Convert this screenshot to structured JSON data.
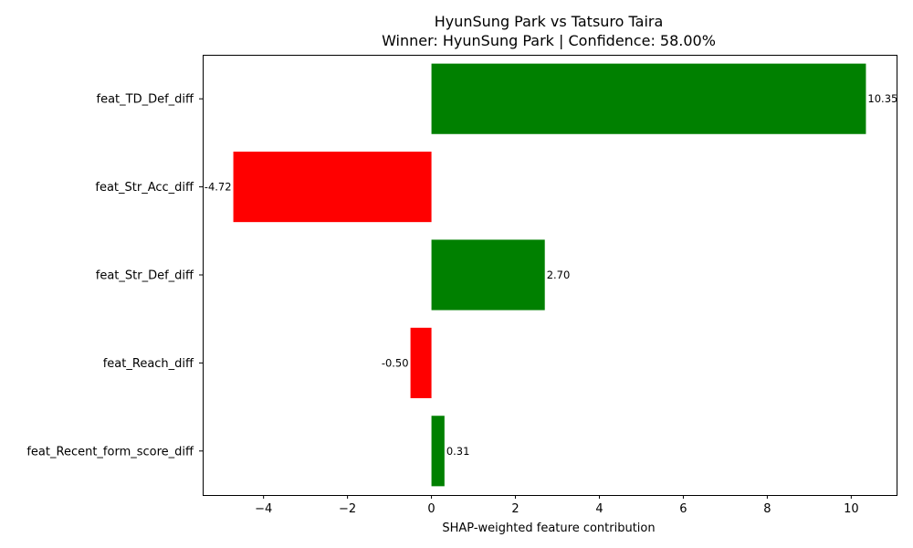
{
  "chart_data": {
    "type": "bar",
    "orientation": "horizontal",
    "title": "HyunSung Park vs Tatsuro Taira",
    "subtitle": "Winner: HyunSung Park | Confidence: 58.00%",
    "xlabel": "SHAP-weighted feature contribution",
    "ylabel": "",
    "categories": [
      "feat_TD_Def_diff",
      "feat_Str_Acc_diff",
      "feat_Str_Def_diff",
      "feat_Reach_diff",
      "feat_Recent_form_score_diff"
    ],
    "values": [
      10.35,
      -4.72,
      2.7,
      -0.5,
      0.31
    ],
    "value_labels": [
      "10.35",
      "-4.72",
      "2.70",
      "-0.50",
      "0.31"
    ],
    "xlim": [
      -5.45,
      11.08
    ],
    "xticks": [
      -4,
      -2,
      0,
      2,
      4,
      6,
      8,
      10
    ],
    "xtick_labels": [
      "−4",
      "−2",
      "0",
      "2",
      "4",
      "6",
      "8",
      "10"
    ],
    "positive_color": "#008000",
    "negative_color": "#ff0000",
    "grid": false,
    "legend": "none"
  }
}
